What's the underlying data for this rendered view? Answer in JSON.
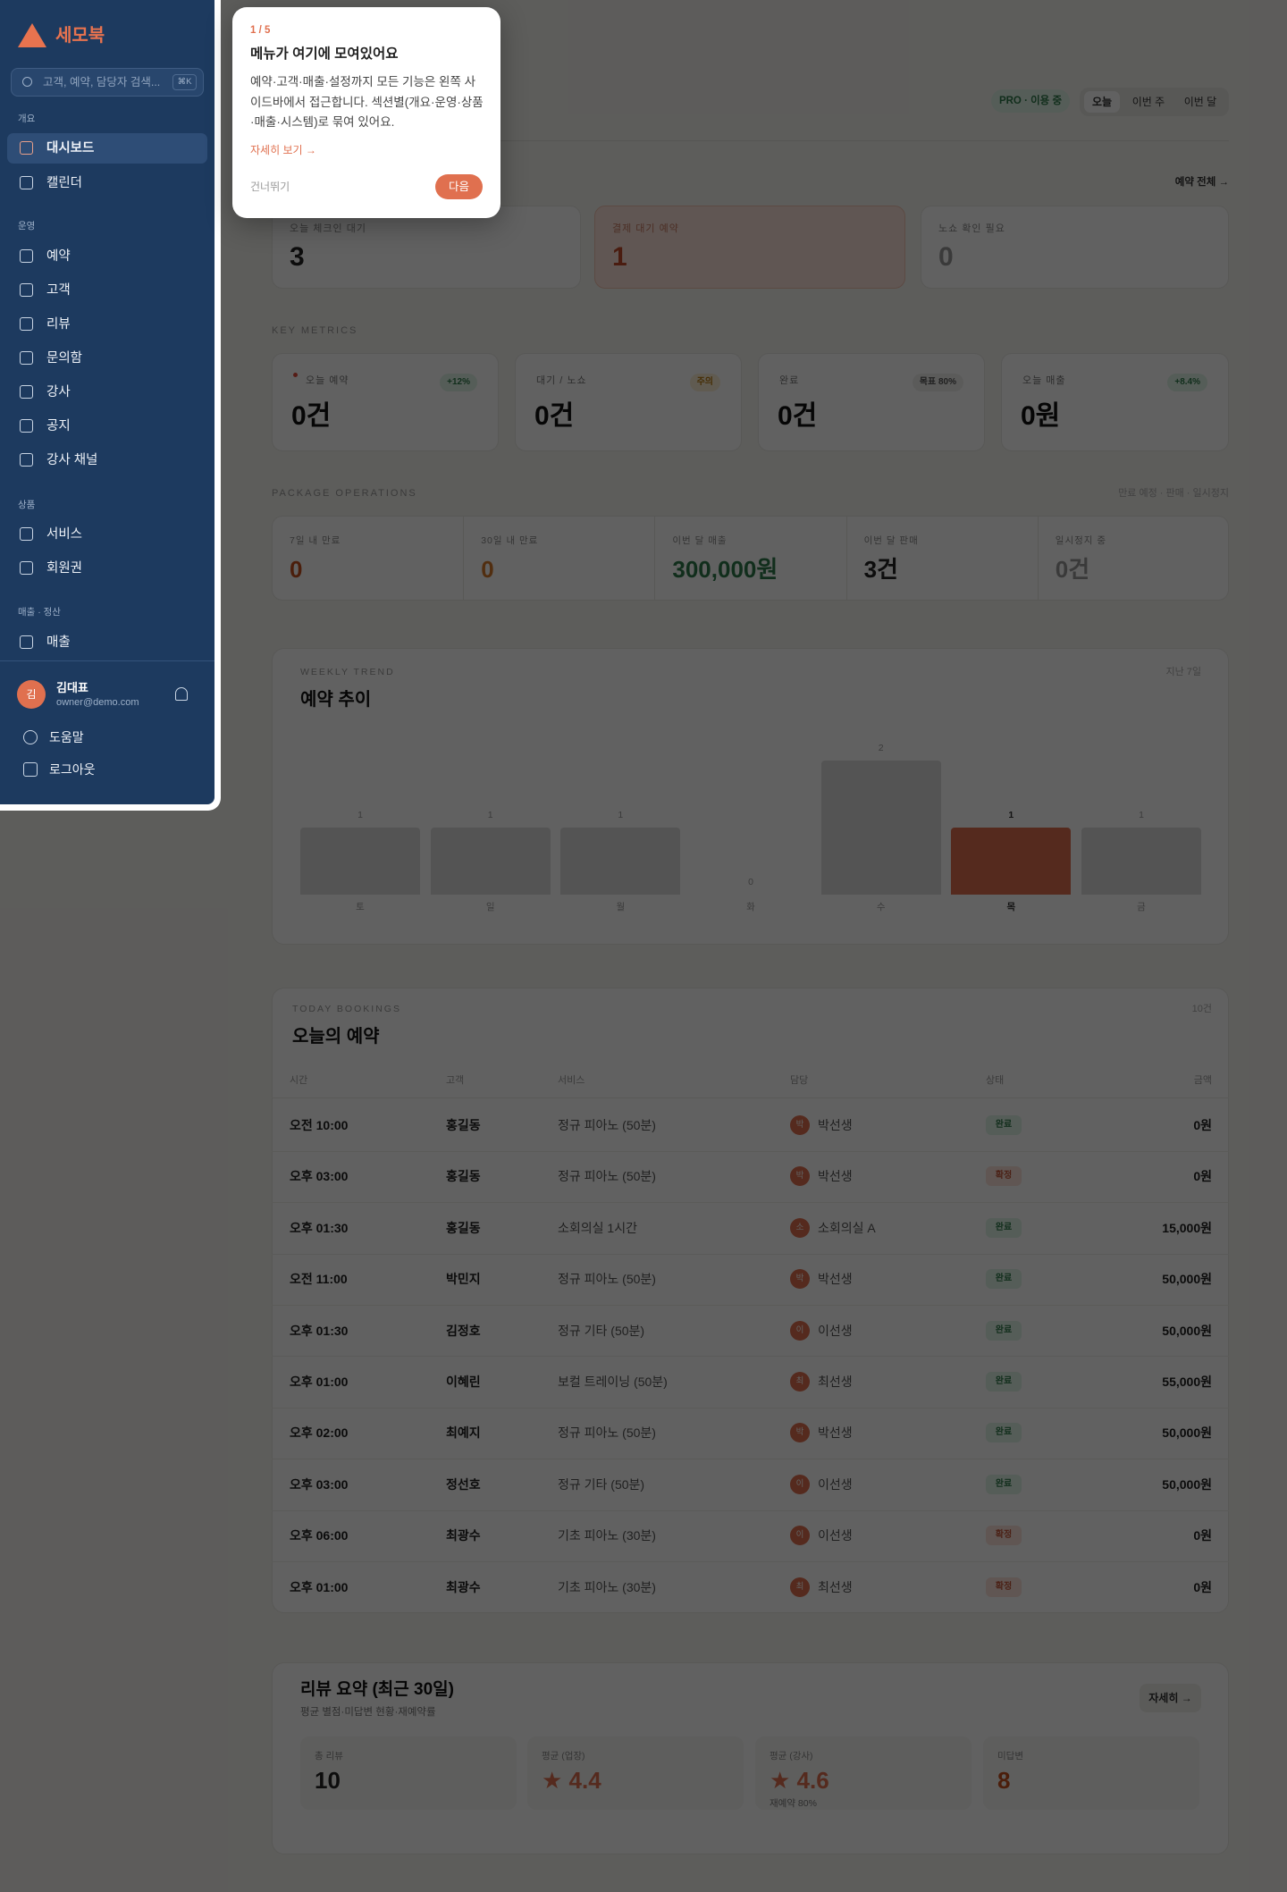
{
  "sidebar": {
    "brand": "세모북",
    "search_placeholder": "고객, 예약, 담당자 검색...",
    "search_shortcut": "⌘K",
    "groups": [
      {
        "label": "개요",
        "items": [
          "대시보드",
          "캘린더"
        ]
      },
      {
        "label": "운영",
        "items": [
          "예약",
          "고객",
          "리뷰",
          "문의함",
          "강사",
          "공지",
          "강사 채널"
        ]
      },
      {
        "label": "상품",
        "items": [
          "서비스",
          "회원권"
        ]
      },
      {
        "label": "매출 · 정산",
        "items": [
          "매출"
        ]
      }
    ],
    "user": {
      "initial": "김",
      "name": "김대표",
      "email": "owner@demo.com"
    },
    "footer_links": [
      "도움말",
      "로그아웃"
    ]
  },
  "tour": {
    "step": "1 / 5",
    "title": "메뉴가 여기에 모여있어요",
    "body": "예약·고객·매출·설정까지 모든 기능은 왼쪽 사이드바에서 접근합니다. 섹션별(개요·운영·상품·매출·시스템)로 묶여 있어요.",
    "link": "자세히 보기 →",
    "skip": "건너뛰기",
    "next": "다음"
  },
  "header": {
    "plan": "PRO · 이용 중",
    "ranges": [
      "오늘",
      "이번 주",
      "이번 달"
    ]
  },
  "alerts": {
    "link": "예약 전체 →",
    "cards": [
      {
        "label": "오늘 체크인 대기",
        "value": "3"
      },
      {
        "label": "결제 대기 예약",
        "value": "1"
      },
      {
        "label": "노쇼 확인 필요",
        "value": "0"
      }
    ]
  },
  "key_metrics": {
    "title": "KEY METRICS",
    "cards": [
      {
        "label": "오늘 예약",
        "badge": "+12%",
        "value": "0건"
      },
      {
        "label": "대기 / 노쇼",
        "badge": "주의",
        "value": "0건"
      },
      {
        "label": "완료",
        "badge": "목표 80%",
        "value": "0건"
      },
      {
        "label": "오늘 매출",
        "badge": "+8.4%",
        "value": "0원"
      }
    ]
  },
  "package_operations": {
    "title": "PACKAGE OPERATIONS",
    "note": "만료 예정 · 판매 · 일시정지",
    "cells": [
      {
        "label": "7일 내 만료",
        "value": "0"
      },
      {
        "label": "30일 내 만료",
        "value": "0"
      },
      {
        "label": "이번 달 매출",
        "value": "300,000원"
      },
      {
        "label": "이번 달 판매",
        "value": "3건"
      },
      {
        "label": "일시정지 중",
        "value": "0건"
      }
    ]
  },
  "weekly_trend": {
    "type": "bar",
    "eyebrow": "WEEKLY TREND",
    "title": "예약 추이",
    "note": "지난 7일",
    "categories": [
      "토",
      "일",
      "월",
      "화",
      "수",
      "목",
      "금"
    ],
    "values": [
      1,
      1,
      1,
      0,
      2,
      1,
      1
    ],
    "colors": [
      "#dcdcdc",
      "#dcdcdc",
      "#dcdcdc",
      "#dcdcdc",
      "#dcdcdc",
      "#e0704f",
      "#dcdcdc"
    ]
  },
  "today_bookings": {
    "eyebrow": "TODAY BOOKINGS",
    "title": "오늘의 예약",
    "count": "10건",
    "columns": [
      "시간",
      "고객",
      "서비스",
      "담당",
      "상태",
      "금액"
    ],
    "rows": [
      [
        "오전 10:00",
        "홍길동",
        "정규 피아노 (50분)",
        "박",
        "박선생",
        "완료",
        "0원"
      ],
      [
        "오후 03:00",
        "홍길동",
        "정규 피아노 (50분)",
        "박",
        "박선생",
        "확정",
        "0원"
      ],
      [
        "오후 01:30",
        "홍길동",
        "소회의실 1시간",
        "소",
        "소회의실 A",
        "완료",
        "15,000원"
      ],
      [
        "오전 11:00",
        "박민지",
        "정규 피아노 (50분)",
        "박",
        "박선생",
        "완료",
        "50,000원"
      ],
      [
        "오후 01:30",
        "김정호",
        "정규 기타 (50분)",
        "이",
        "이선생",
        "완료",
        "50,000원"
      ],
      [
        "오후 01:00",
        "이혜린",
        "보컬 트레이닝 (50분)",
        "최",
        "최선생",
        "완료",
        "55,000원"
      ],
      [
        "오후 02:00",
        "최예지",
        "정규 피아노 (50분)",
        "박",
        "박선생",
        "완료",
        "50,000원"
      ],
      [
        "오후 03:00",
        "정선호",
        "정규 기타 (50분)",
        "이",
        "이선생",
        "완료",
        "50,000원"
      ],
      [
        "오후 06:00",
        "최광수",
        "기초 피아노 (30분)",
        "이",
        "이선생",
        "확정",
        "0원"
      ],
      [
        "오후 01:00",
        "최광수",
        "기초 피아노 (30분)",
        "최",
        "최선생",
        "확정",
        "0원"
      ]
    ]
  },
  "reviews": {
    "title": "리뷰 요약 (최근 30일)",
    "subtitle": "평균 별점·미답변 현황·재예약률",
    "button": "자세히 →",
    "stats": [
      {
        "label": "총 리뷰",
        "value": "10"
      },
      {
        "label": "평균 (업장)",
        "value": "★ 4.4"
      },
      {
        "label": "평균 (강사)",
        "value": "★ 4.6",
        "sub": "재예약 80%"
      },
      {
        "label": "미답변",
        "value": "8"
      }
    ]
  }
}
